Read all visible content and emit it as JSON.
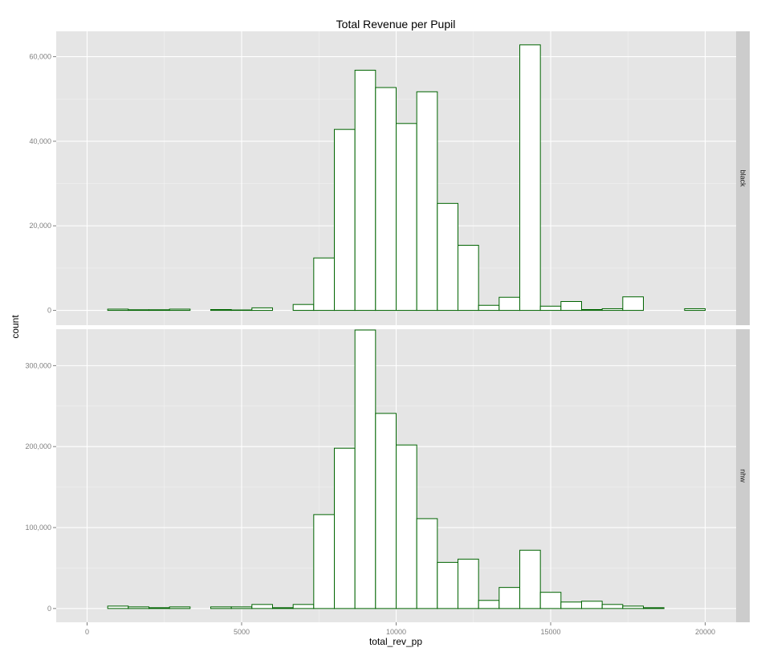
{
  "chart_data": {
    "type": "bar",
    "title": "Total Revenue per Pupil",
    "xlabel": "total_rev_pp",
    "ylabel": "count",
    "xlim": [
      -1000,
      21000
    ],
    "x_ticks": [
      0,
      5000,
      10000,
      15000,
      20000
    ],
    "x_tick_labels": [
      "0",
      "5000",
      "10000",
      "15000",
      "20000"
    ],
    "bin_edges": [
      0,
      667,
      1333,
      2000,
      2667,
      3333,
      4000,
      4667,
      5333,
      6000,
      6667,
      7333,
      8000,
      8667,
      9333,
      10000,
      10667,
      11333,
      12000,
      12667,
      13333,
      14000,
      14667,
      15333,
      16000,
      16667,
      17333,
      18000,
      18667,
      19333,
      20000
    ],
    "grid": true,
    "bar_fill": "#ffffff",
    "bar_outline": "#006400",
    "panel_background": "#e5e5e5",
    "strip_background": "#cccccc",
    "panels": [
      {
        "strip": "black",
        "ylim": [
          -3500,
          66000
        ],
        "y_ticks": [
          0,
          20000,
          40000,
          60000
        ],
        "y_tick_labels": [
          "0",
          "20,000",
          "40,000",
          "60,000"
        ],
        "values": [
          0,
          300,
          150,
          150,
          300,
          0,
          200,
          100,
          600,
          0,
          1400,
          12400,
          42800,
          56800,
          52700,
          44200,
          51700,
          25300,
          15400,
          1200,
          3100,
          62800,
          1000,
          2100,
          200,
          400,
          3200,
          0,
          0,
          400
        ]
      },
      {
        "strip": "nhw",
        "ylim": [
          -17000,
          345000
        ],
        "y_ticks": [
          0,
          100000,
          200000,
          300000
        ],
        "y_tick_labels": [
          "0",
          "100,000",
          "200,000",
          "300,000"
        ],
        "values": [
          0,
          3000,
          2000,
          1000,
          2000,
          0,
          2000,
          2000,
          5000,
          1000,
          5000,
          116000,
          198000,
          344000,
          241000,
          202000,
          111000,
          57000,
          61000,
          10000,
          26000,
          72000,
          20000,
          8000,
          9000,
          5000,
          3000,
          1000,
          0,
          0
        ]
      }
    ]
  }
}
